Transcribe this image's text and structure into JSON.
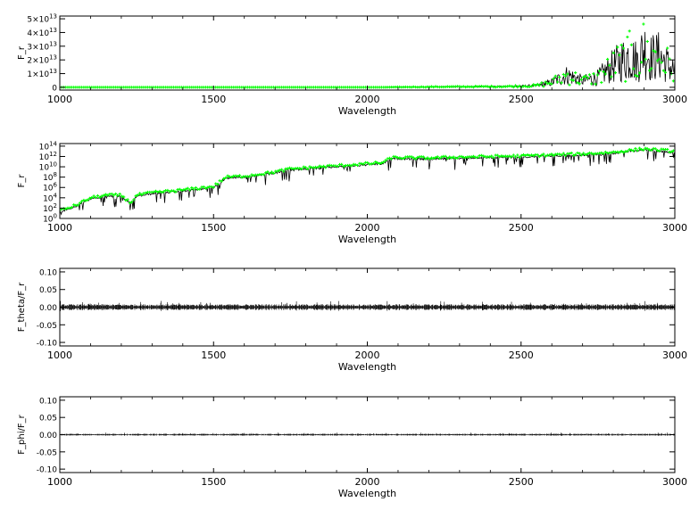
{
  "colors": {
    "data": "#000000",
    "model": "#00ff00",
    "axis": "#000000",
    "background": "#ffffff"
  },
  "chart_data": [
    {
      "type": "line",
      "xlabel": "Wavelength",
      "ylabel": "F_r",
      "xlim": [
        1000,
        3000
      ],
      "ylim": [
        -2000000000000.0,
        52000000000000.0
      ],
      "xticks": [
        1000,
        1500,
        2000,
        2500,
        3000
      ],
      "xtick_labels": [
        "1000",
        "1500",
        "2000",
        "2500",
        "3000"
      ],
      "yticks": [
        0,
        10000000000000.0,
        20000000000000.0,
        30000000000000.0,
        40000000000000.0,
        50000000000000.0
      ],
      "ytick_labels": [
        "0",
        "1×10",
        "2×10",
        "3×10",
        "4×10",
        "5×10"
      ],
      "ytick_exponents": [
        "",
        "13",
        "13",
        "13",
        "13",
        "13"
      ],
      "yscale": "linear",
      "series": [
        {
          "color": "#000000",
          "style": "line",
          "x": [
            1000,
            2050,
            2080,
            2150,
            2250,
            2350,
            2450,
            2550,
            2600,
            2650,
            2700,
            2750,
            2800,
            2850,
            2880,
            2900,
            2920,
            2950,
            2980,
            3000
          ],
          "y": [
            0,
            0,
            200000000000.0,
            400000000000.0,
            600000000000.0,
            800000000000.0,
            1000000000000.0,
            2000000000000.0,
            6000000000000.0,
            15000000000000.0,
            8000000000000.0,
            12000000000000.0,
            26000000000000.0,
            38000000000000.0,
            31000000000000.0,
            48000000000000.0,
            36000000000000.0,
            38000000000000.0,
            26000000000000.0,
            20000000000000.0
          ]
        },
        {
          "color": "#00ff00",
          "style": "markers",
          "x": [
            1000,
            2050,
            2080,
            2150,
            2250,
            2350,
            2450,
            2550,
            2600,
            2650,
            2700,
            2750,
            2800,
            2850,
            2880,
            2900,
            2920,
            2950,
            2980,
            3000
          ],
          "y": [
            0,
            0,
            200000000000.0,
            400000000000.0,
            600000000000.0,
            800000000000.0,
            1000000000000.0,
            2000000000000.0,
            6000000000000.0,
            15000000000000.0,
            8000000000000.0,
            12000000000000.0,
            26000000000000.0,
            38000000000000.0,
            31000000000000.0,
            48000000000000.0,
            36000000000000.0,
            38000000000000.0,
            26000000000000.0,
            20000000000000.0
          ]
        }
      ]
    },
    {
      "type": "line",
      "xlabel": "Wavelength",
      "ylabel": "F_r",
      "xlim": [
        1000,
        3000
      ],
      "ylim": [
        0,
        14.5
      ],
      "yscale": "log",
      "xticks": [
        1000,
        1500,
        2000,
        2500,
        3000
      ],
      "xtick_labels": [
        "1000",
        "1500",
        "2000",
        "2500",
        "3000"
      ],
      "yticks": [
        0,
        2,
        4,
        6,
        8,
        10,
        12,
        14
      ],
      "ytick_labels": [
        "10",
        "10",
        "10",
        "10",
        "10",
        "10",
        "10",
        "10"
      ],
      "ytick_exponents": [
        "0",
        "2",
        "4",
        "6",
        "8",
        "10",
        "12",
        "14"
      ],
      "series": [
        {
          "color": "#000000",
          "style": "line",
          "x": [
            1000,
            1050,
            1100,
            1150,
            1200,
            1230,
            1250,
            1300,
            1400,
            1500,
            1540,
            1600,
            1700,
            1750,
            1800,
            1900,
            2000,
            2050,
            2080,
            2200,
            2300,
            2400,
            2500,
            2600,
            2700,
            2800,
            2900,
            3000
          ],
          "y": [
            1.5,
            2.5,
            4.0,
            4.5,
            4.5,
            3.0,
            4.5,
            5.0,
            5.5,
            6.2,
            8.0,
            8.2,
            9.0,
            9.6,
            9.8,
            10.2,
            10.6,
            10.8,
            11.8,
            11.7,
            11.9,
            12.0,
            12.1,
            12.3,
            12.5,
            12.8,
            13.5,
            13.0
          ]
        },
        {
          "color": "#00ff00",
          "style": "markers",
          "x": [
            1000,
            1050,
            1100,
            1150,
            1200,
            1230,
            1250,
            1300,
            1400,
            1500,
            1540,
            1600,
            1700,
            1750,
            1800,
            1900,
            2000,
            2050,
            2080,
            2200,
            2300,
            2400,
            2500,
            2600,
            2700,
            2800,
            2900,
            3000
          ],
          "y": [
            1.5,
            2.5,
            4.0,
            4.5,
            4.5,
            3.0,
            4.5,
            5.0,
            5.5,
            6.2,
            8.0,
            8.2,
            9.0,
            9.6,
            9.8,
            10.2,
            10.6,
            10.8,
            11.8,
            11.7,
            11.9,
            12.0,
            12.1,
            12.3,
            12.5,
            12.8,
            13.5,
            13.0
          ]
        }
      ]
    },
    {
      "type": "line",
      "xlabel": "Wavelength",
      "ylabel": "F_theta/F_r",
      "xlim": [
        1000,
        3000
      ],
      "ylim": [
        -0.11,
        0.11
      ],
      "yscale": "linear",
      "xticks": [
        1000,
        1500,
        2000,
        2500,
        3000
      ],
      "xtick_labels": [
        "1000",
        "1500",
        "2000",
        "2500",
        "3000"
      ],
      "yticks": [
        -0.1,
        -0.05,
        0,
        0.05,
        0.1
      ],
      "ytick_labels": [
        "-0.10",
        "-0.05",
        "0.00",
        "0.05",
        "0.10"
      ],
      "series": [
        {
          "color": "#000000",
          "style": "noise",
          "x": [
            1000,
            3000
          ],
          "y": [
            0,
            0
          ],
          "amplitude": 0.006
        }
      ]
    },
    {
      "type": "line",
      "xlabel": "Wavelength",
      "ylabel": "F_phi/F_r",
      "xlim": [
        1000,
        3000
      ],
      "ylim": [
        -0.11,
        0.11
      ],
      "yscale": "linear",
      "xticks": [
        1000,
        1500,
        2000,
        2500,
        3000
      ],
      "xtick_labels": [
        "1000",
        "1500",
        "2000",
        "2500",
        "3000"
      ],
      "yticks": [
        -0.1,
        -0.05,
        0,
        0.05,
        0.1
      ],
      "ytick_labels": [
        "-0.10",
        "-0.05",
        "0.00",
        "0.05",
        "0.10"
      ],
      "series": [
        {
          "color": "#000000",
          "style": "noise",
          "x": [
            1000,
            3000
          ],
          "y": [
            0,
            0
          ],
          "amplitude": 0.002
        }
      ]
    }
  ]
}
